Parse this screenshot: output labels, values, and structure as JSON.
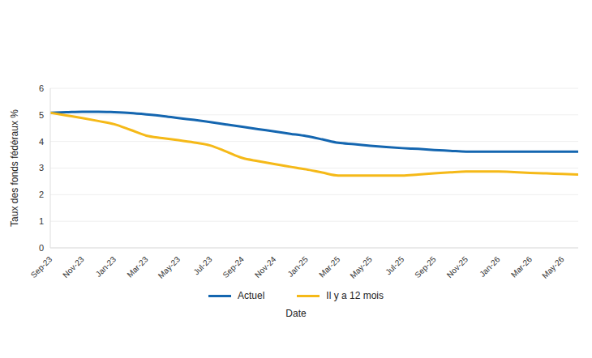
{
  "chart_data": {
    "type": "line",
    "y_label": "Taux des fonds fédéraux %",
    "x_label": "Date",
    "categories": [
      "Sep-23",
      null,
      "Nov-23",
      null,
      "Jan-23",
      null,
      "Mar-23",
      null,
      "May-23",
      null,
      "Jul-23",
      null,
      "Sep-24",
      null,
      "Nov-24",
      null,
      "Jan-25",
      null,
      "Mar-25",
      null,
      "May-25",
      null,
      "Jul-25",
      null,
      "Sep-25",
      null,
      "Nov-25",
      null,
      "Jan-26",
      null,
      "Mar-26",
      null,
      "May-26",
      null
    ],
    "series": [
      {
        "name": "Actuel",
        "color": "#1466b0",
        "values": [
          5.08,
          5.1,
          5.12,
          5.12,
          5.1,
          5.07,
          5.02,
          4.96,
          4.88,
          4.81,
          4.73,
          4.64,
          4.55,
          4.46,
          4.38,
          4.29,
          4.2,
          4.08,
          3.95,
          3.9,
          3.84,
          3.79,
          3.75,
          3.72,
          3.68,
          3.65,
          3.62,
          3.62,
          3.62,
          3.62,
          3.62,
          3.62,
          3.62,
          3.62
        ]
      },
      {
        "name": "Il y a 12 mois",
        "color": "#f5b918",
        "values": [
          5.08,
          4.98,
          4.88,
          4.77,
          4.65,
          4.44,
          4.22,
          4.13,
          4.05,
          3.96,
          3.85,
          3.62,
          3.38,
          3.26,
          3.15,
          3.05,
          2.95,
          2.83,
          2.72,
          2.72,
          2.72,
          2.72,
          2.72,
          2.76,
          2.8,
          2.84,
          2.87,
          2.87,
          2.87,
          2.85,
          2.82,
          2.8,
          2.78,
          2.76
        ]
      }
    ],
    "ylim": [
      0,
      6
    ],
    "yticks": [
      0,
      1,
      2,
      3,
      4,
      5,
      6
    ],
    "grid": true,
    "legend": "bottom"
  }
}
